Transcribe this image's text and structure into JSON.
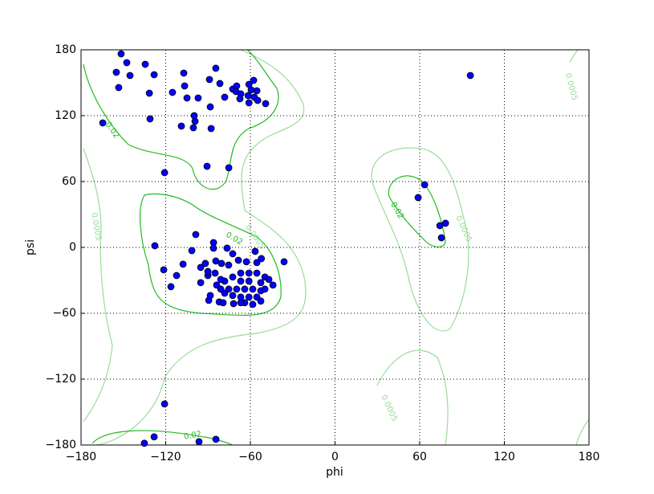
{
  "chart_data": {
    "type": "scatter",
    "xlabel": "phi",
    "ylabel": "psi",
    "xlim": [
      -180,
      180
    ],
    "ylim": [
      -180,
      180
    ],
    "xticks": [
      {
        "value": -180,
        "label": "−180"
      },
      {
        "value": -120,
        "label": "−120"
      },
      {
        "value": -60,
        "label": "−60"
      },
      0,
      60,
      120,
      180
    ],
    "yticks": [
      {
        "value": -180,
        "label": "−180"
      },
      {
        "value": -120,
        "label": "−120"
      },
      {
        "value": -60,
        "label": "−60"
      },
      0,
      60,
      120,
      180
    ],
    "grid": true,
    "color": "#0000ff",
    "contours": [
      {
        "level": 0.02,
        "color": "#22bb22"
      },
      {
        "level": 0.0005,
        "color": "#99dd99"
      }
    ],
    "x": [
      -151.6,
      -147.6,
      -155,
      -145.3,
      -153.3,
      -134.5,
      -128.2,
      -131.6,
      -115.2,
      -107.2,
      -106.6,
      -104.9,
      -97,
      -84.5,
      -89,
      -81.6,
      -78.2,
      -88.4,
      -72.5,
      -69.7,
      -70.2,
      -66.8,
      -67.4,
      -61.6,
      -61,
      -57.7,
      -59.4,
      -55.4,
      -57.2,
      -61,
      -54.8,
      -49.2,
      -99.8,
      -99.2,
      -108.9,
      -100.4,
      -87.8,
      -164.6,
      -131.1,
      -90.7,
      -75.3,
      -120.8,
      -98.7,
      -127.7,
      -86.1,
      -86.1,
      -101.5,
      -121.4,
      -107.7,
      -116.3,
      -112.3,
      -76.5,
      -72.5,
      -56.6,
      -36.1,
      -95.2,
      -95.2,
      -90.1,
      -88.4,
      -89.5,
      -82.1,
      -79.3,
      -71.9,
      -91.9,
      -84.5,
      -80.5,
      -75.4,
      -68.5,
      -62.8,
      -55.4,
      -52.2,
      -90.1,
      -66.8,
      -61,
      -55.4,
      -49.7,
      -72.5,
      -78.2,
      -83.9,
      -66.8,
      -61,
      -52.6,
      -46.9,
      -75.3,
      -69.7,
      -64,
      -58.3,
      -52.6,
      -78.2,
      -72.5,
      -66.8,
      -61,
      -55.4,
      -49.7,
      -64,
      -58.3,
      -66.8,
      -85,
      -81,
      -44,
      -52.6,
      -81,
      95.9,
      63.5,
      58.9,
      74.3,
      78.3,
      75.4,
      -120.8,
      -128.2,
      -135.1,
      -96.4,
      -84.4
    ],
    "y": [
      176.3,
      168.3,
      159.5,
      156.6,
      145.6,
      166.8,
      157.3,
      140.5,
      141.2,
      158.8,
      147.1,
      136.1,
      136.1,
      163.2,
      152.9,
      149.3,
      136.8,
      128,
      144.2,
      147.1,
      142,
      139.8,
      135.4,
      138.3,
      148.5,
      152.2,
      143.4,
      142.7,
      136.8,
      131.7,
      133.9,
      131,
      120,
      114.9,
      110.5,
      109,
      108.3,
      113.4,
      117.1,
      73.9,
      72.5,
      68.1,
      11.7,
      1.5,
      4.4,
      -0.7,
      -2.9,
      -20.4,
      -15.3,
      -35.8,
      -25.6,
      -0.7,
      -5.8,
      -3.6,
      -13.1,
      -18.2,
      -32.1,
      -25.6,
      -43.8,
      -48.2,
      -49.7,
      -50.4,
      -51.2,
      -14.6,
      -12.4,
      -14.6,
      -16.1,
      -11.7,
      -13.1,
      -13.8,
      -10.2,
      -21.9,
      -23.4,
      -23.4,
      -23.4,
      -27,
      -27,
      -30.7,
      -34.3,
      -30.7,
      -30.7,
      -32.1,
      -29.2,
      -38,
      -38,
      -38,
      -38,
      -39.5,
      -41.7,
      -43.8,
      -45.3,
      -45.3,
      -45.3,
      -38,
      -50.4,
      -51.9,
      -50.4,
      -23.4,
      -29.2,
      -34.3,
      -48.9,
      -38,
      156.6,
      57.1,
      45.4,
      19.8,
      22,
      8.8,
      -142.6,
      -172.6,
      -178.4,
      -177,
      -174.8
    ]
  }
}
